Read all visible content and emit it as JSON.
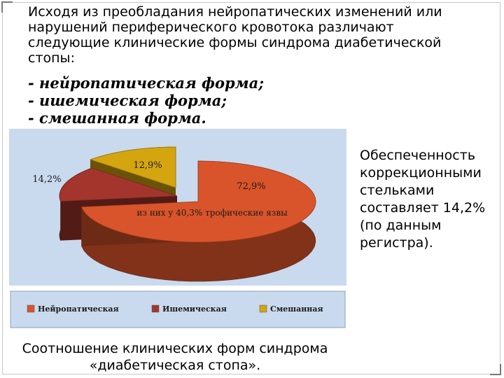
{
  "intro_text": "Исходя из преобладания нейропатических изменений или нарушений периферического кровотока различают следующие клинические формы синдрома диабетической стопы:",
  "forms": [
    "- нейропатическая форма;",
    "- ишемическая форма;",
    "- смешанная форма."
  ],
  "side_note": "Обеспеченность коррекционными стельками составляет 14,2% (по данным регистра).",
  "caption": "Соотношение клинических форм синдрома «диабетическая стопа».",
  "colors": {
    "neuropathic": "#d9542a",
    "ischemic": "#a3352c",
    "mixed": "#d4a50e",
    "chart_bg": "#c9daee"
  },
  "chart_data": {
    "type": "pie",
    "title": "",
    "categories": [
      "Нейропатическая",
      "Ишемическая",
      "Смешанная"
    ],
    "values": [
      72.9,
      14.2,
      12.9
    ],
    "value_labels": [
      "72,9%",
      "14,2%",
      "12,9%"
    ],
    "annotation": "из них у 40,3% трофические язвы",
    "legend_position": "bottom",
    "three_d": true
  }
}
